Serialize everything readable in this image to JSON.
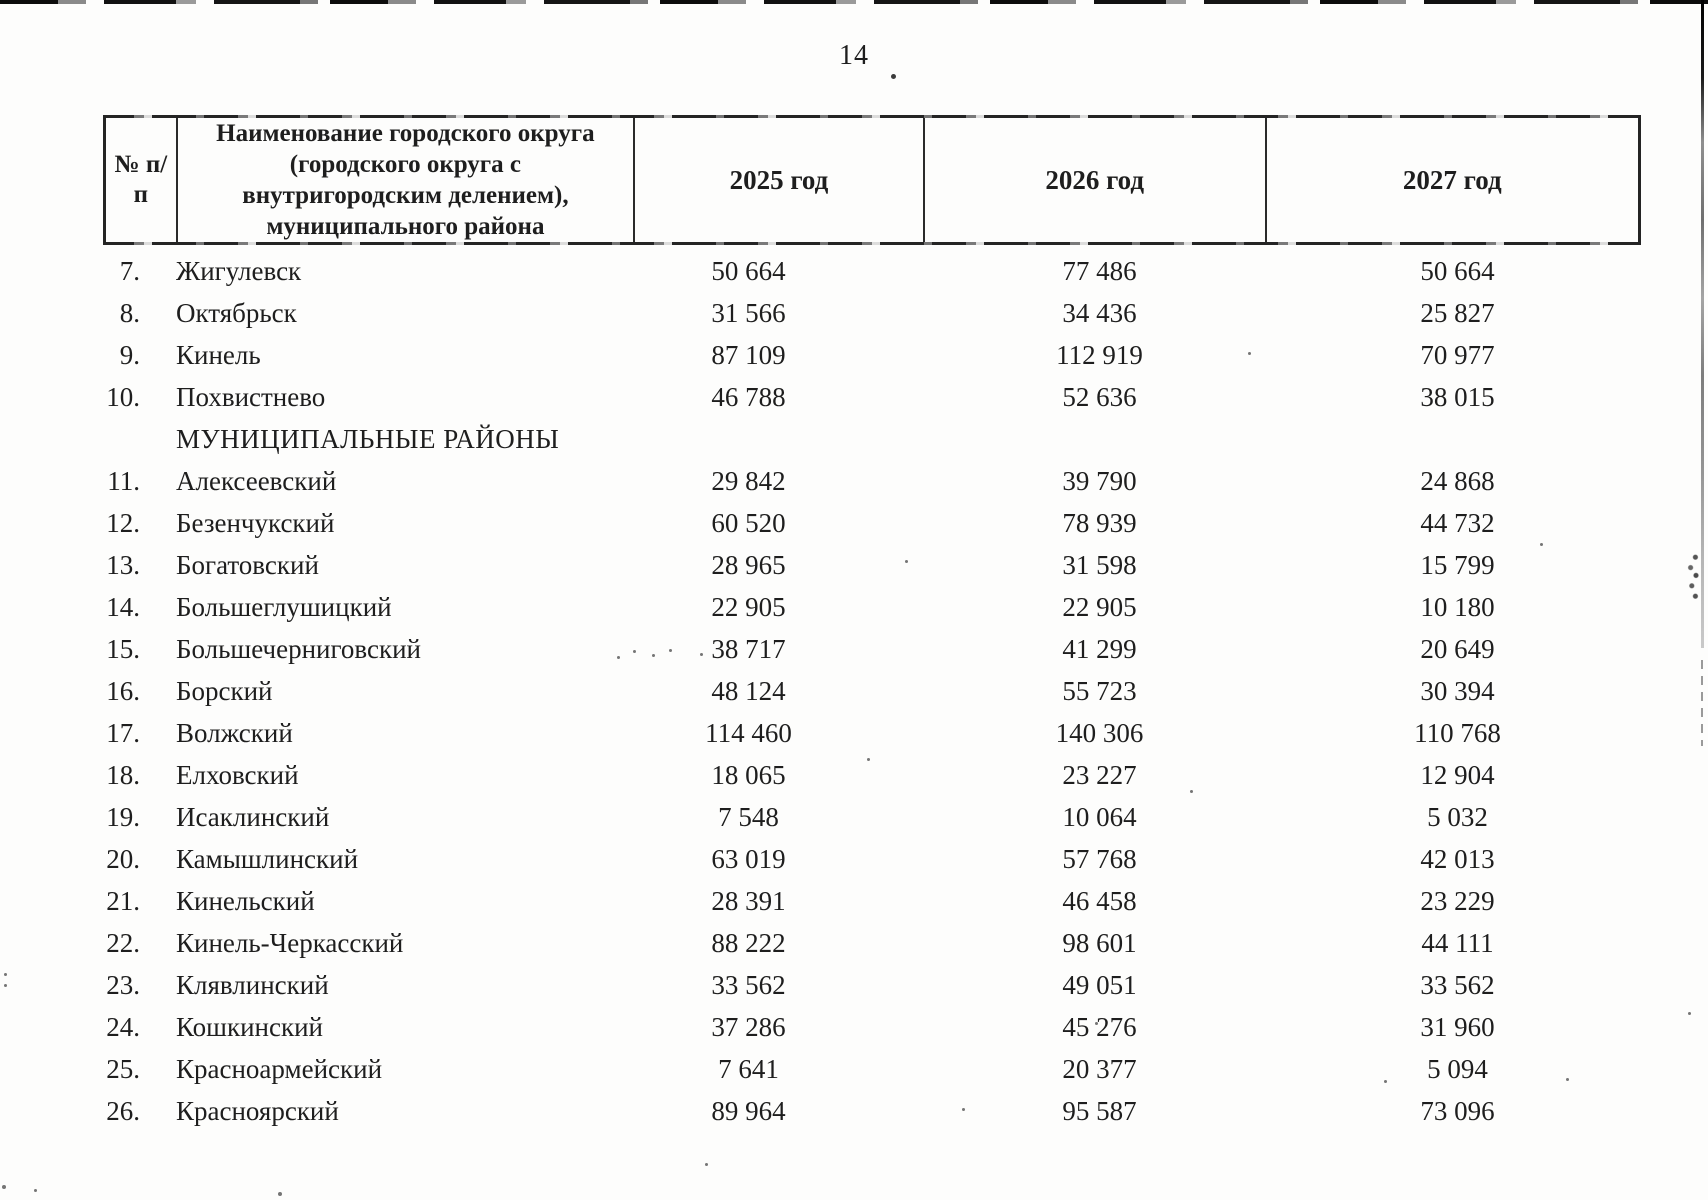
{
  "page": {
    "number": "14"
  },
  "table": {
    "headers": {
      "num": "№ п/п",
      "name": "Наименование городского округа (городского округа с внутригородским делением), муниципального района",
      "y2025": "2025 год",
      "y2026": "2026 год",
      "y2027": "2027 год"
    },
    "rows": [
      {
        "n": "7.",
        "name": "Жигулевск",
        "v25": "50 664",
        "v26": "77 486",
        "v27": "50 664"
      },
      {
        "n": "8.",
        "name": "Октябрьск",
        "v25": "31 566",
        "v26": "34 436",
        "v27": "25 827"
      },
      {
        "n": "9.",
        "name": "Кинель",
        "v25": "87 109",
        "v26": "112 919",
        "v27": "70 977"
      },
      {
        "n": "10.",
        "name": "Похвистнево",
        "v25": "46 788",
        "v26": "52 636",
        "v27": "38 015"
      },
      {
        "section": "МУНИЦИПАЛЬНЫЕ РАЙОНЫ"
      },
      {
        "n": "11.",
        "name": "Алексеевский",
        "v25": "29 842",
        "v26": "39 790",
        "v27": "24 868"
      },
      {
        "n": "12.",
        "name": "Безенчукский",
        "v25": "60 520",
        "v26": "78 939",
        "v27": "44 732"
      },
      {
        "n": "13.",
        "name": "Богатовский",
        "v25": "28 965",
        "v26": "31 598",
        "v27": "15 799"
      },
      {
        "n": "14.",
        "name": "Большеглушицкий",
        "v25": "22 905",
        "v26": "22 905",
        "v27": "10 180"
      },
      {
        "n": "15.",
        "name": "Большечерниговский",
        "v25": "38 717",
        "v26": "41 299",
        "v27": "20 649"
      },
      {
        "n": "16.",
        "name": "Борский",
        "v25": "48 124",
        "v26": "55 723",
        "v27": "30 394"
      },
      {
        "n": "17.",
        "name": "Волжский",
        "v25": "114 460",
        "v26": "140 306",
        "v27": "110 768"
      },
      {
        "n": "18.",
        "name": "Елховский",
        "v25": "18 065",
        "v26": "23 227",
        "v27": "12 904"
      },
      {
        "n": "19.",
        "name": "Исаклинский",
        "v25": "7 548",
        "v26": "10 064",
        "v27": "5 032"
      },
      {
        "n": "20.",
        "name": "Камышлинский",
        "v25": "63 019",
        "v26": "57 768",
        "v27": "42 013"
      },
      {
        "n": "21.",
        "name": "Кинельский",
        "v25": "28 391",
        "v26": "46 458",
        "v27": "23 229"
      },
      {
        "n": "22.",
        "name": "Кинель-Черкасский",
        "v25": "88 222",
        "v26": "98 601",
        "v27": "44 111"
      },
      {
        "n": "23.",
        "name": "Клявлинский",
        "v25": "33 562",
        "v26": "49 051",
        "v27": "33 562"
      },
      {
        "n": "24.",
        "name": "Кошкинский",
        "v25": "37 286",
        "v26": "45 276",
        "v27": "31 960"
      },
      {
        "n": "25.",
        "name": "Красноармейский",
        "v25": "7 641",
        "v26": "20 377",
        "v27": "5 094"
      },
      {
        "n": "26.",
        "name": "Красноярский",
        "v25": "89 964",
        "v26": "95 587",
        "v27": "73 096"
      }
    ]
  }
}
